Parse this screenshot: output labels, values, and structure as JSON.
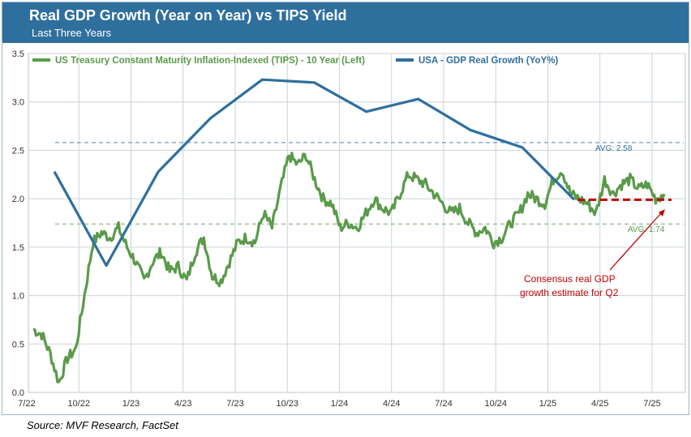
{
  "title": "Real GDP Growth (Year on Year) vs TIPS Yield",
  "subtitle": "Last Three Years",
  "source": "Source: MVF Research, FactSet",
  "colors": {
    "header_bg": "#2f6f9e",
    "tips": "#5a9a4a",
    "gdp": "#2f6f9e",
    "consensus": "#c00000",
    "annotation_text": "#c00000"
  },
  "chart_data": {
    "type": "line",
    "title": "Real GDP Growth (Year on Year) vs TIPS Yield",
    "xlabel": "",
    "ylabel": "",
    "ylim": [
      0,
      3.5
    ],
    "y_ticks": [
      "0.0",
      "0.5",
      "1.0",
      "1.5",
      "2.0",
      "2.5",
      "3.0",
      "3.5"
    ],
    "x_ticks": [
      "7/22",
      "10/22",
      "1/23",
      "4/23",
      "7/23",
      "10/23",
      "1/24",
      "4/24",
      "7/24",
      "10/24",
      "1/25",
      "4/25",
      "7/25"
    ],
    "grid": true,
    "legend": "top-left",
    "series": [
      {
        "name": "US Treasury Constant Maturity Inflation-Indexed (TIPS) - 10 Year (Left)",
        "type": "line",
        "x": [
          "7/22",
          "7/22",
          "8/22",
          "8/22",
          "8/22",
          "9/22",
          "9/22",
          "10/22",
          "10/22",
          "11/22",
          "11/22",
          "12/22",
          "12/22",
          "1/23",
          "1/23",
          "2/23",
          "2/23",
          "3/23",
          "3/23",
          "4/23",
          "4/23",
          "5/23",
          "5/23",
          "6/23",
          "6/23",
          "7/23",
          "7/23",
          "8/23",
          "8/23",
          "9/23",
          "9/23",
          "10/23",
          "10/23",
          "11/23",
          "11/23",
          "12/23",
          "12/23",
          "1/24",
          "1/24",
          "2/24",
          "2/24",
          "3/24",
          "3/24",
          "4/24",
          "4/24",
          "5/24",
          "5/24",
          "6/24",
          "6/24",
          "7/24",
          "7/24",
          "8/24",
          "8/24",
          "9/24",
          "9/24",
          "10/24",
          "10/24",
          "11/24",
          "11/24",
          "12/24",
          "12/24",
          "1/25",
          "1/25",
          "2/25",
          "2/25",
          "3/25",
          "3/25",
          "4/25",
          "4/25",
          "5/25",
          "5/25",
          "6/25",
          "6/25",
          "7/25",
          "7/25"
        ],
        "values": [
          0.65,
          0.6,
          0.4,
          0.1,
          0.35,
          0.45,
          1.0,
          1.55,
          1.65,
          1.6,
          1.7,
          1.5,
          1.35,
          1.15,
          1.35,
          1.45,
          1.25,
          1.3,
          1.15,
          1.45,
          1.6,
          1.2,
          1.15,
          1.35,
          1.55,
          1.6,
          1.55,
          1.85,
          1.7,
          2.1,
          2.45,
          2.35,
          2.45,
          2.2,
          2.0,
          1.95,
          1.7,
          1.75,
          1.7,
          1.85,
          2.0,
          1.9,
          1.85,
          2.05,
          2.25,
          2.2,
          2.15,
          2.05,
          1.95,
          1.85,
          1.9,
          1.75,
          1.65,
          1.7,
          1.55,
          1.6,
          1.75,
          1.85,
          2.05,
          2.0,
          1.95,
          2.2,
          2.3,
          2.05,
          2.0,
          1.95,
          1.85,
          2.2,
          2.05,
          2.15,
          2.2,
          2.1,
          2.15,
          2.0,
          2.05
        ]
      },
      {
        "name": "USA - GDP Real Growth (YoY%)",
        "type": "line",
        "x": [
          "Q3-22",
          "Q4-22",
          "Q1-23",
          "Q2-23",
          "Q3-23",
          "Q4-23",
          "Q1-24",
          "Q2-24",
          "Q3-24",
          "Q4-24",
          "Q1-25"
        ],
        "values": [
          2.28,
          1.31,
          2.28,
          2.83,
          3.23,
          3.2,
          2.9,
          3.03,
          2.71,
          2.53,
          1.99
        ]
      }
    ],
    "reference_lines": [
      {
        "label": "AVG: 2.58",
        "value": 2.58,
        "series": "USA - GDP Real Growth (YoY%)"
      },
      {
        "label": "AVG: 1.74",
        "value": 1.74,
        "series": "US Treasury Constant Maturity Inflation-Indexed (TIPS) - 10 Year (Left)"
      }
    ],
    "consensus": {
      "value": 1.99,
      "label": "Consensus real GDP growth estimate for Q2"
    }
  }
}
